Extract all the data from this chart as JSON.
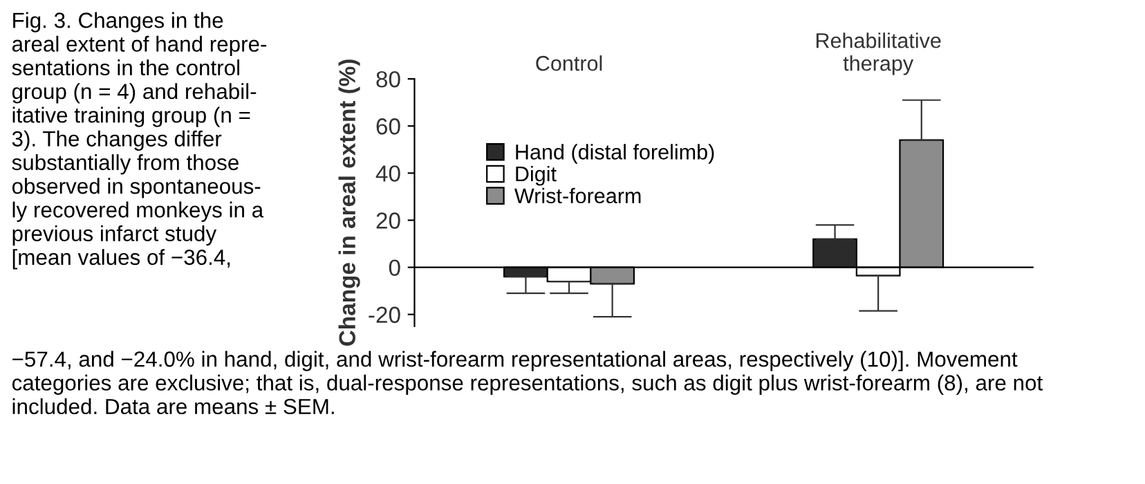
{
  "chart_data": {
    "type": "bar",
    "ylabel": "Change in areal extent (%)",
    "categories": [
      "Control",
      "Rehabilitative\ntherapy"
    ],
    "series": [
      {
        "name": "Hand (distal forelimb)",
        "color": "#2b2b2b",
        "values": [
          -4,
          12
        ],
        "errors": [
          [
            -11,
            -4
          ],
          [
            12,
            18
          ]
        ]
      },
      {
        "name": "Digit",
        "color": "#ffffff",
        "values": [
          -6,
          -3.5
        ],
        "errors": [
          [
            -11,
            -6
          ],
          [
            -18.5,
            -3.5
          ]
        ]
      },
      {
        "name": "Wrist-forearm",
        "color": "#8c8c8c",
        "values": [
          -7,
          54
        ],
        "errors": [
          [
            -21,
            -7
          ],
          [
            54,
            71
          ]
        ]
      }
    ],
    "ylim": [
      -25,
      80
    ],
    "yticks": [
      -20,
      0,
      20,
      40,
      60,
      80
    ],
    "legend": "top left",
    "annotations": [
      "Fig. 3. Changes in the\nareal extent of hand repre-\nsentations in the control\ngroup (n = 4) and rehabil-\nitative training group (n =\n3). The changes differ\nsubstantially from those\nobserved in spontaneous-\nly recovered monkeys in a\nprevious infarct study\n[mean values of −36.4,",
      "−57.4, and −24.0% in hand, digit, and wrist-forearm representational areas, respectively (10)]. Movement\ncategories are exclusive; that is, dual-response representations, such as digit plus wrist-forearm (8), are not\nincluded. Data are means ± SEM."
    ]
  }
}
